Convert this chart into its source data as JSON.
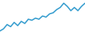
{
  "x": [
    0,
    1,
    2,
    3,
    4,
    5,
    6,
    7,
    8,
    9,
    10,
    11,
    12,
    13,
    14,
    15,
    16,
    17,
    18,
    19,
    20,
    21,
    22,
    23,
    24
  ],
  "y": [
    1,
    3,
    7,
    5,
    9,
    6,
    10,
    8,
    12,
    11,
    13,
    12,
    15,
    14,
    17,
    18,
    21,
    23,
    27,
    24,
    20,
    23,
    20,
    24,
    27
  ],
  "line_color": "#3ca0d0",
  "background_color": "#ffffff",
  "linewidth": 1.3,
  "ylim": [
    0,
    30
  ],
  "xlim": [
    0,
    24
  ]
}
